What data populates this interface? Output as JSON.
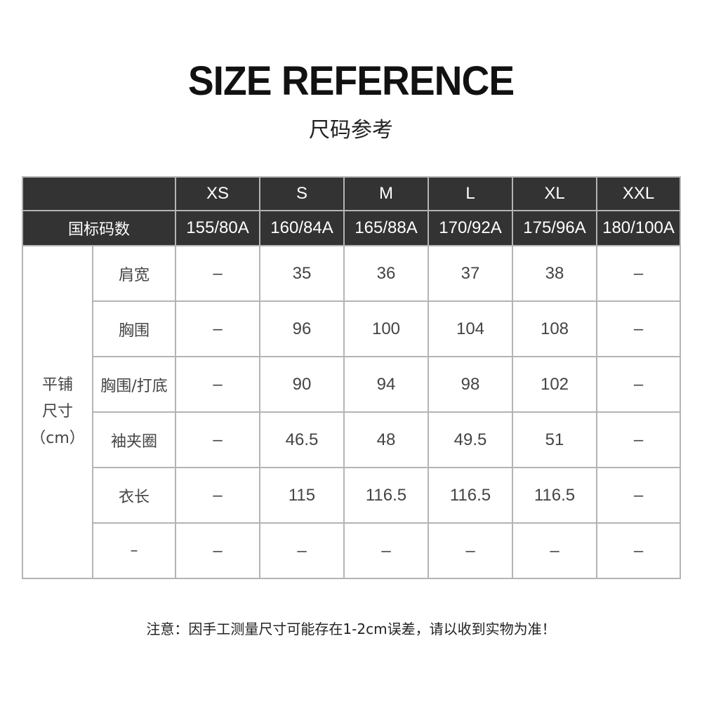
{
  "header": {
    "title": "SIZE REFERENCE",
    "subtitle": "尺码参考"
  },
  "table": {
    "sizes": [
      "XS",
      "S",
      "M",
      "L",
      "XL",
      "XXL"
    ],
    "national_label": "国标码数",
    "national": [
      "155/80A",
      "160/84A",
      "165/88A",
      "170/92A",
      "175/96A",
      "180/100A"
    ],
    "group_label": [
      "平铺",
      "尺寸",
      "（cm）"
    ],
    "rows": [
      {
        "label": "肩宽",
        "values": [
          "–",
          "35",
          "36",
          "37",
          "38",
          "–"
        ]
      },
      {
        "label": "胸围",
        "values": [
          "–",
          "96",
          "100",
          "104",
          "108",
          "–"
        ]
      },
      {
        "label": "胸围/打底",
        "values": [
          "–",
          "90",
          "94",
          "98",
          "102",
          "–"
        ]
      },
      {
        "label": "袖夹圈",
        "values": [
          "–",
          "46.5",
          "48",
          "49.5",
          "51",
          "–"
        ]
      },
      {
        "label": "衣长",
        "values": [
          "–",
          "115",
          "116.5",
          "116.5",
          "116.5",
          "–"
        ]
      },
      {
        "label": "–",
        "values": [
          "–",
          "–",
          "–",
          "–",
          "–",
          "–"
        ]
      }
    ],
    "colors": {
      "header_bg": "#333333",
      "border": "#b4b4b4"
    }
  },
  "footer": {
    "note": "注意：因手工测量尺寸可能存在1-2cm误差，请以收到实物为准！"
  }
}
